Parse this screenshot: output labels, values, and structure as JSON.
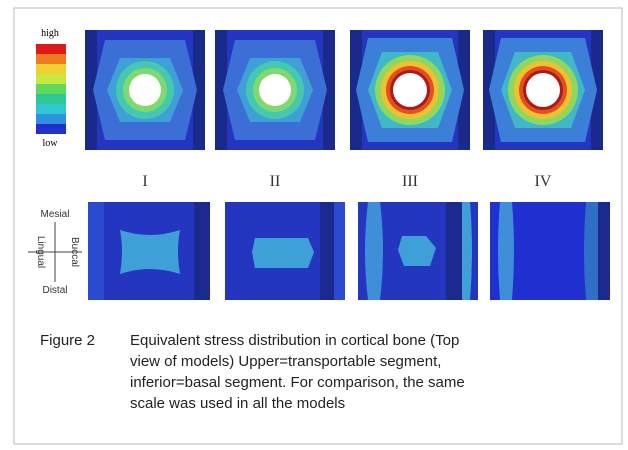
{
  "legend": {
    "high": "high",
    "low": "low"
  },
  "top_row": {
    "labels": [
      "I",
      "II",
      "III",
      "IV"
    ]
  },
  "orientation": {
    "top": "Mesial",
    "bottom": "Distal",
    "left": "Lingual",
    "right": "Buccal"
  },
  "caption": {
    "label": "Figure 2",
    "lines": [
      "Equivalent stress distribution in cortical bone (Top",
      "view of models) Upper=transportable segment,",
      "inferior=basal segment. For comparison, the same",
      "scale was used in all the models"
    ]
  }
}
